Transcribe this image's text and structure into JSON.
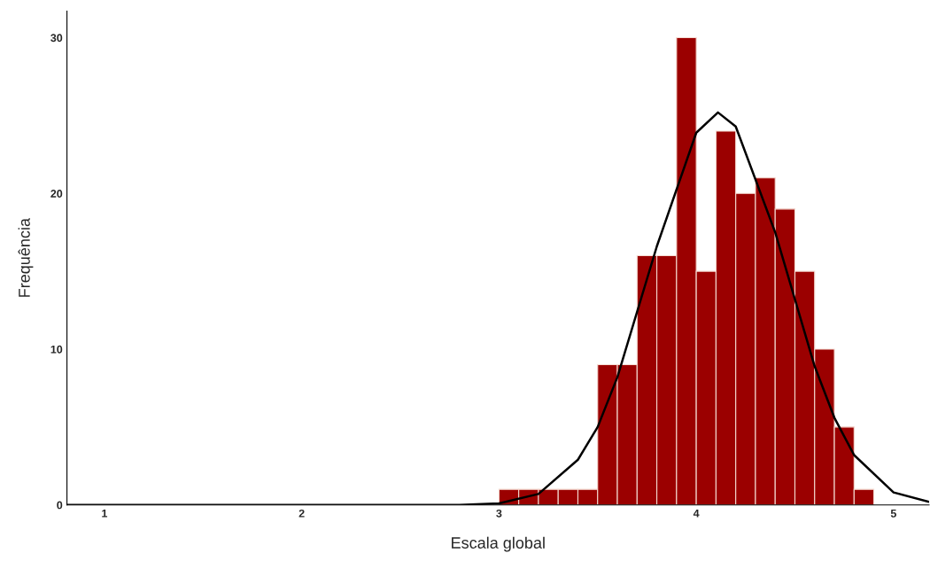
{
  "chart_data": {
    "type": "histogram",
    "xlabel": "Escala global",
    "ylabel": "Frequência",
    "bins": [
      3.0,
      3.1,
      3.2,
      3.3,
      3.4,
      3.5,
      3.6,
      3.7,
      3.8,
      3.9,
      4.0,
      4.1,
      4.2,
      4.3,
      4.4,
      4.5,
      4.6,
      4.7,
      4.8,
      4.9
    ],
    "values": [
      1,
      1,
      1,
      1,
      1,
      9,
      9,
      16,
      16,
      30,
      15,
      24,
      20,
      21,
      19,
      15,
      10,
      5,
      1
    ],
    "color": "#9b0000",
    "series": [
      {
        "type": "line",
        "color": "#000000",
        "x": [
          0.81,
          2.6,
          2.8,
          3.0,
          3.2,
          3.4,
          3.5,
          3.6,
          3.8,
          4.0,
          4.11,
          4.2,
          4.4,
          4.6,
          4.7,
          4.8,
          5.0,
          5.18
        ],
        "values": [
          0,
          0,
          0,
          0.1,
          0.7,
          2.9,
          5,
          8.2,
          16.6,
          23.9,
          25.2,
          24.3,
          17.5,
          8.9,
          5.6,
          3.2,
          0.8,
          0.2
        ]
      }
    ],
    "xlim": [
      0.81,
      5.18
    ],
    "ylim": [
      0,
      31.7
    ],
    "xticks": [
      1,
      2,
      3,
      4,
      5
    ],
    "yticks": [
      0,
      10,
      20,
      30
    ],
    "grid": false
  }
}
